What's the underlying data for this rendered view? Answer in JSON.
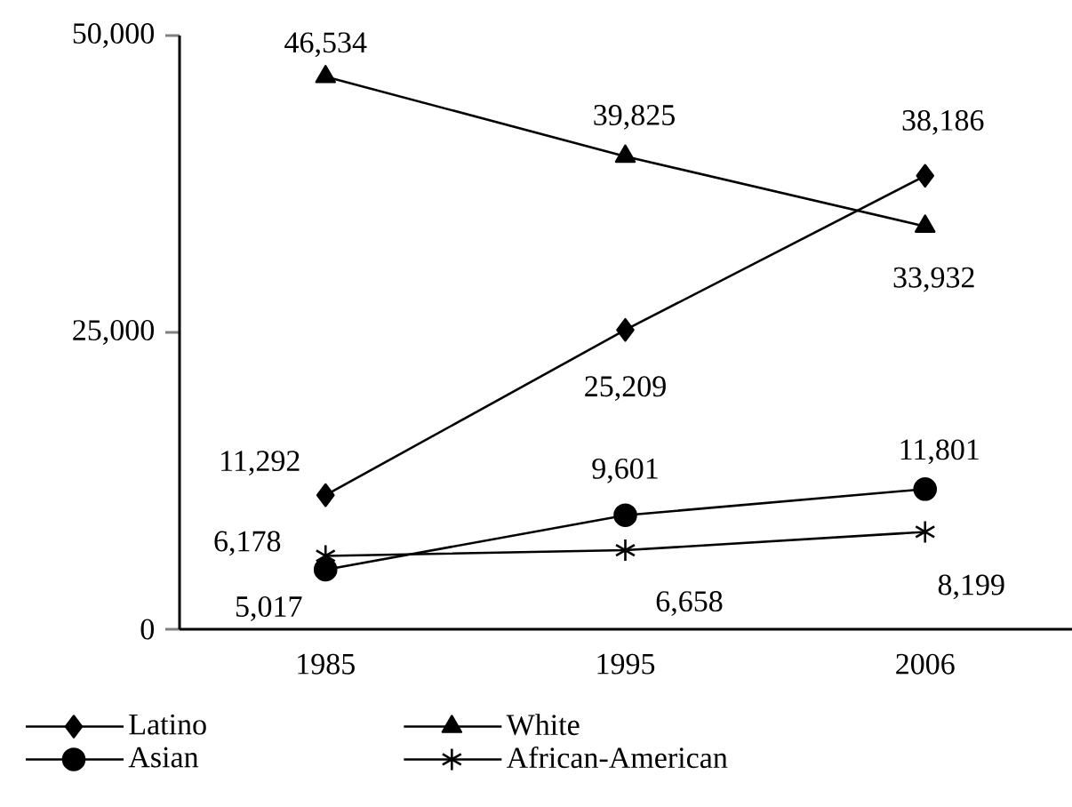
{
  "chart_data": {
    "type": "line",
    "categories": [
      "1985",
      "1995",
      "2006"
    ],
    "series": [
      {
        "name": "Latino",
        "color": "#000000",
        "marker": "diamond",
        "values": [
          11292,
          25209,
          38186
        ],
        "value_labels": [
          "11,292",
          "25,209",
          "38,186"
        ]
      },
      {
        "name": "White",
        "color": "#000000",
        "marker": "triangle",
        "values": [
          46534,
          39825,
          33932
        ],
        "value_labels": [
          "46,534",
          "39,825",
          "33,932"
        ]
      },
      {
        "name": "Asian",
        "color": "#000000",
        "marker": "circle",
        "values": [
          5017,
          9601,
          11801
        ],
        "value_labels": [
          "5,017",
          "9,601",
          "11,801"
        ]
      },
      {
        "name": "African-American",
        "color": "#000000",
        "marker": "cross",
        "values": [
          6178,
          6658,
          8199
        ],
        "value_labels": [
          "6,178",
          "6,658",
          "8,199"
        ]
      }
    ],
    "ylim": [
      0,
      50000
    ],
    "yticks": [
      0,
      {
        "value": 25000,
        "label": "25,000"
      },
      {
        "value": 50000,
        "label": "50,000"
      }
    ],
    "grid": false,
    "legend": "bottom",
    "line_style": "solid"
  }
}
